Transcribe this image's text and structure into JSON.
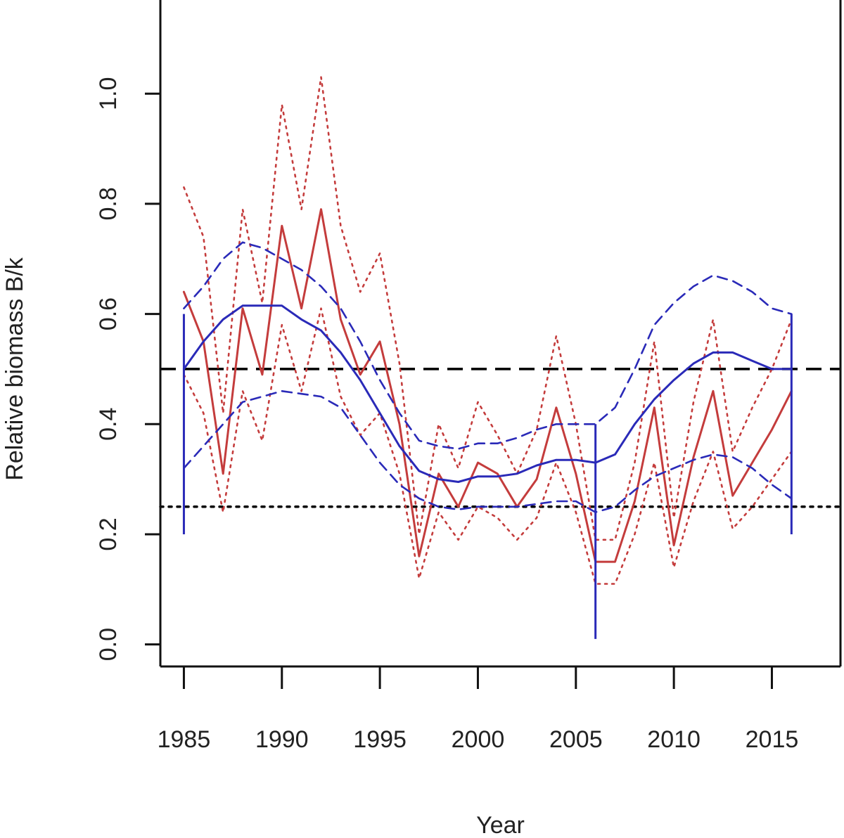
{
  "chart_data": {
    "type": "line",
    "xlabel": "Year",
    "ylabel": "Relative biomass B/k",
    "xlim": [
      1983.8,
      2018.5
    ],
    "ylim": [
      -0.04,
      1.17
    ],
    "x_ticks": [
      "1985",
      "1990",
      "1995",
      "2000",
      "2005",
      "2010",
      "2015"
    ],
    "y_ticks": [
      "0.0",
      "0.2",
      "0.4",
      "0.6",
      "0.8",
      "1.0"
    ],
    "reference_lines": [
      {
        "y": 0.5,
        "style": "dashed",
        "color": "#000000"
      },
      {
        "y": 0.25,
        "style": "dotted",
        "color": "#000000"
      }
    ],
    "series": [
      {
        "style": "solid",
        "color": "#c43c3c",
        "x": [
          1985,
          1986,
          1987,
          1988,
          1989,
          1990,
          1991,
          1992,
          1993,
          1994,
          1995,
          1996,
          1997,
          1998,
          1999,
          2000,
          2001,
          2002,
          2003,
          2004,
          2005,
          2006,
          2007,
          2008,
          2009,
          2010,
          2011,
          2012,
          2013,
          2014,
          2015,
          2016
        ],
        "y": [
          0.64,
          0.55,
          0.31,
          0.61,
          0.49,
          0.76,
          0.61,
          0.79,
          0.59,
          0.49,
          0.55,
          0.4,
          0.16,
          0.31,
          0.25,
          0.33,
          0.31,
          0.25,
          0.3,
          0.43,
          0.31,
          0.15,
          0.15,
          0.26,
          0.43,
          0.18,
          0.34,
          0.46,
          0.27,
          0.33,
          0.39,
          0.46
        ]
      },
      {
        "style": "dotted",
        "color": "#c43c3c",
        "x": [
          1985,
          1986,
          1987,
          1988,
          1989,
          1990,
          1991,
          1992,
          1993,
          1994,
          1995,
          1996,
          1997,
          1998,
          1999,
          2000,
          2001,
          2002,
          2003,
          2004,
          2005,
          2006,
          2007,
          2008,
          2009,
          2010,
          2011,
          2012,
          2013,
          2014,
          2015,
          2016
        ],
        "y": [
          0.83,
          0.74,
          0.42,
          0.79,
          0.62,
          0.98,
          0.79,
          1.03,
          0.76,
          0.64,
          0.71,
          0.51,
          0.2,
          0.4,
          0.32,
          0.44,
          0.38,
          0.31,
          0.39,
          0.56,
          0.4,
          0.19,
          0.19,
          0.33,
          0.55,
          0.23,
          0.44,
          0.59,
          0.35,
          0.43,
          0.5,
          0.59
        ]
      },
      {
        "style": "dotted",
        "color": "#c43c3c",
        "x": [
          1985,
          1986,
          1987,
          1988,
          1989,
          1990,
          1991,
          1992,
          1993,
          1994,
          1995,
          1996,
          1997,
          1998,
          1999,
          2000,
          2001,
          2002,
          2003,
          2004,
          2005,
          2006,
          2007,
          2008,
          2009,
          2010,
          2011,
          2012,
          2013,
          2014,
          2015,
          2016
        ],
        "y": [
          0.49,
          0.42,
          0.24,
          0.46,
          0.37,
          0.58,
          0.46,
          0.61,
          0.45,
          0.38,
          0.42,
          0.31,
          0.12,
          0.24,
          0.19,
          0.25,
          0.23,
          0.19,
          0.23,
          0.33,
          0.24,
          0.11,
          0.11,
          0.2,
          0.33,
          0.14,
          0.26,
          0.35,
          0.21,
          0.25,
          0.3,
          0.35
        ]
      },
      {
        "style": "solid",
        "color": "#2a2ab8",
        "x": [
          1985,
          1986,
          1987,
          1988,
          1989,
          1990,
          1991,
          1992,
          1993,
          1994,
          1995,
          1996,
          1997,
          1998,
          1999,
          2000,
          2001,
          2002,
          2003,
          2004,
          2005,
          2006,
          2007,
          2008,
          2009,
          2010,
          2011,
          2012,
          2013,
          2014,
          2015,
          2016
        ],
        "y": [
          0.5,
          0.55,
          0.59,
          0.615,
          0.615,
          0.615,
          0.59,
          0.57,
          0.53,
          0.48,
          0.42,
          0.36,
          0.315,
          0.3,
          0.295,
          0.305,
          0.305,
          0.31,
          0.325,
          0.335,
          0.335,
          0.33,
          0.345,
          0.4,
          0.445,
          0.48,
          0.51,
          0.53,
          0.53,
          0.515,
          0.5,
          0.5
        ]
      },
      {
        "style": "dashed",
        "color": "#2a2ab8",
        "x": [
          1985,
          1986,
          1987,
          1988,
          1989,
          1990,
          1991,
          1992,
          1993,
          1994,
          1995,
          1996,
          1997,
          1998,
          1999,
          2000,
          2001,
          2002,
          2003,
          2004,
          2005,
          2006,
          2007,
          2008,
          2009,
          2010,
          2011,
          2012,
          2013,
          2014,
          2015,
          2016
        ],
        "y": [
          0.61,
          0.65,
          0.7,
          0.73,
          0.72,
          0.7,
          0.68,
          0.65,
          0.61,
          0.55,
          0.48,
          0.42,
          0.37,
          0.36,
          0.355,
          0.365,
          0.365,
          0.375,
          0.39,
          0.4,
          0.4,
          0.4,
          0.43,
          0.5,
          0.58,
          0.62,
          0.65,
          0.67,
          0.66,
          0.64,
          0.61,
          0.6
        ]
      },
      {
        "style": "dashed",
        "color": "#2a2ab8",
        "x": [
          1985,
          1986,
          1987,
          1988,
          1989,
          1990,
          1991,
          1992,
          1993,
          1994,
          1995,
          1996,
          1997,
          1998,
          1999,
          2000,
          2001,
          2002,
          2003,
          2004,
          2005,
          2006,
          2007,
          2008,
          2009,
          2010,
          2011,
          2012,
          2013,
          2014,
          2015,
          2016
        ],
        "y": [
          0.32,
          0.36,
          0.4,
          0.44,
          0.45,
          0.46,
          0.455,
          0.45,
          0.43,
          0.38,
          0.33,
          0.29,
          0.265,
          0.25,
          0.245,
          0.25,
          0.25,
          0.25,
          0.255,
          0.26,
          0.26,
          0.24,
          0.25,
          0.28,
          0.305,
          0.32,
          0.335,
          0.345,
          0.34,
          0.32,
          0.29,
          0.265
        ]
      }
    ],
    "vertical_bars": [
      {
        "x": 1985,
        "y_low": 0.2,
        "y_high": 0.6,
        "color": "#2a2ab8"
      },
      {
        "x": 2006,
        "y_low": 0.01,
        "y_high": 0.4,
        "color": "#2a2ab8"
      },
      {
        "x": 2016,
        "y_low": 0.2,
        "y_high": 0.6,
        "color": "#2a2ab8"
      }
    ]
  }
}
